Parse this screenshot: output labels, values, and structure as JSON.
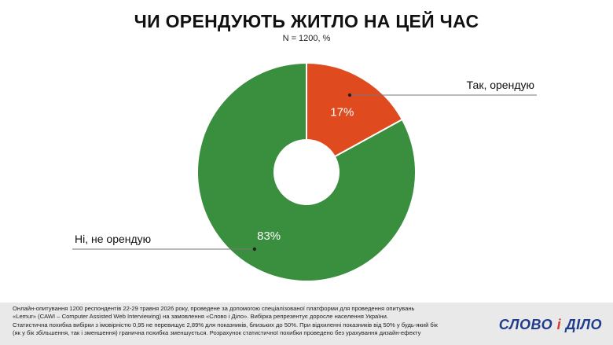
{
  "header": {
    "title": "ЧИ ОРЕНДУЮТЬ ЖИТЛО НА ЦЕЙ ЧАС",
    "subtitle": "N = 1200, %"
  },
  "chart_data": {
    "type": "pie",
    "donut": true,
    "title": "ЧИ ОРЕНДУЮТЬ ЖИТЛО НА ЦЕЙ ЧАС",
    "subtitle": "N = 1200, %",
    "categories": [
      "Так, орендую",
      "Ні, не орендую"
    ],
    "values": [
      17,
      83
    ],
    "value_labels": [
      "17%",
      "83%"
    ],
    "colors": [
      "#e04a1f",
      "#3a8f3e"
    ],
    "legend": "none"
  },
  "footer": {
    "lines": [
      "Онлайн-опитування 1200 респондентів 22-29 травня 2026 року, проведене за допомогою спеціалізованої платформи для проведення опитувань",
      "«Lemur» (CAWI – Computer Assisted Web Interviewing) на замовлення «Слово і Діло». Вибірка репрезентує доросле населення України.",
      "Статистична похибка вибірки з імовірністю 0,95 не перевищує 2,89% для показників, близьких до 50%. При відхиленні показників від 50% у будь-який бік",
      "(як у бік збільшення, так і зменшення) гранична похибка зменшується. Розрахунок статистичної похибки проведено без урахування дизайн-ефекту"
    ],
    "logo_left": "СЛОВО",
    "logo_mid": " і ",
    "logo_right": "ДІЛО"
  }
}
